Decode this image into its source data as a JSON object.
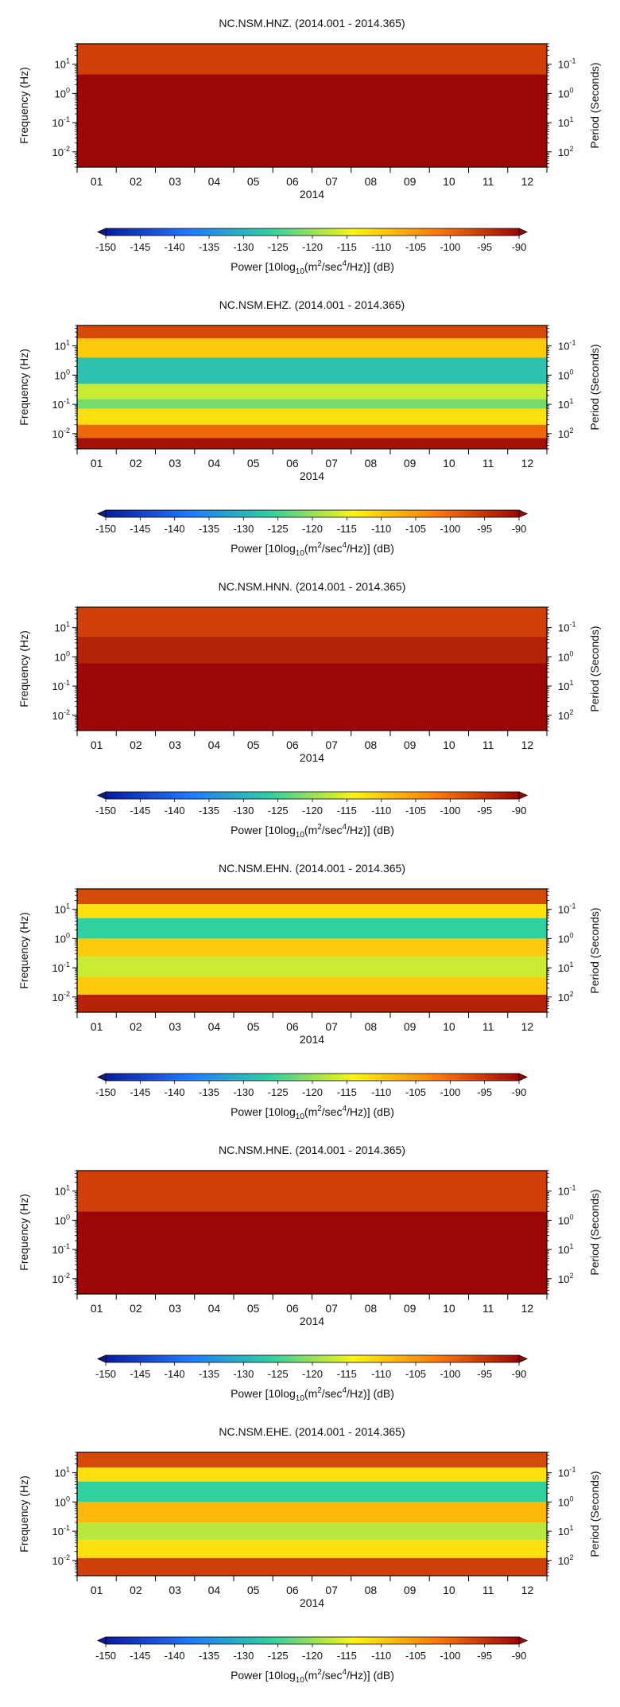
{
  "chart_data": [
    {
      "type": "heatmap",
      "title": "NC.NSM.HNZ. (2014.001 - 2014.365)",
      "xlabel": "2014",
      "ylabel": "Frequency (Hz)",
      "y2label": "Period (Seconds)",
      "x_ticks": [
        "01",
        "02",
        "03",
        "04",
        "05",
        "06",
        "07",
        "08",
        "09",
        "10",
        "11",
        "12"
      ],
      "y_scale": "log",
      "y_ticks": [
        {
          "value": 10,
          "label": "10",
          "exp": "1"
        },
        {
          "value": 1,
          "label": "10",
          "exp": "0"
        },
        {
          "value": 0.1,
          "label": "10",
          "exp": "-1"
        },
        {
          "value": 0.01,
          "label": "10",
          "exp": "-2"
        }
      ],
      "y2_ticks": [
        {
          "value": 0.1,
          "label": "10",
          "exp": "-1"
        },
        {
          "value": 1,
          "label": "10",
          "exp": "0"
        },
        {
          "value": 10,
          "label": "10",
          "exp": "1"
        },
        {
          "value": 100,
          "label": "10",
          "exp": "2"
        }
      ],
      "ylim": [
        0.003,
        50
      ],
      "bands": [
        {
          "f_hi": 50,
          "f_lo": 4.5,
          "power": -96
        },
        {
          "f_hi": 4.5,
          "f_lo": 0.003,
          "power": -90
        }
      ],
      "colorbar": {
        "label_prefix": "Power [10log",
        "label_sub": "10",
        "label_mid1": "(m",
        "label_sup1": "2",
        "label_mid2": "/sec",
        "label_sup2": "4",
        "label_suffix": "/Hz)] (dB)",
        "ticks": [
          "-150",
          "-145",
          "-140",
          "-135",
          "-130",
          "-125",
          "-120",
          "-115",
          "-110",
          "-105",
          "-100",
          "-95",
          "-90"
        ],
        "range": [
          -150,
          -90
        ]
      }
    },
    {
      "type": "heatmap",
      "title": "NC.NSM.EHZ. (2014.001 - 2014.365)",
      "xlabel": "2014",
      "ylabel": "Frequency (Hz)",
      "y2label": "Period (Seconds)",
      "x_ticks": [
        "01",
        "02",
        "03",
        "04",
        "05",
        "06",
        "07",
        "08",
        "09",
        "10",
        "11",
        "12"
      ],
      "y_scale": "log",
      "y_ticks": [
        {
          "value": 10,
          "label": "10",
          "exp": "1"
        },
        {
          "value": 1,
          "label": "10",
          "exp": "0"
        },
        {
          "value": 0.1,
          "label": "10",
          "exp": "-1"
        },
        {
          "value": 0.01,
          "label": "10",
          "exp": "-2"
        }
      ],
      "y2_ticks": [
        {
          "value": 0.1,
          "label": "10",
          "exp": "-1"
        },
        {
          "value": 1,
          "label": "10",
          "exp": "0"
        },
        {
          "value": 10,
          "label": "10",
          "exp": "1"
        },
        {
          "value": 100,
          "label": "10",
          "exp": "2"
        }
      ],
      "ylim": [
        0.003,
        50
      ],
      "bands": [
        {
          "f_hi": 50,
          "f_lo": 18,
          "power": -97
        },
        {
          "f_hi": 18,
          "f_lo": 4,
          "power": -110
        },
        {
          "f_hi": 4,
          "f_lo": 0.5,
          "power": -128
        },
        {
          "f_hi": 0.5,
          "f_lo": 0.15,
          "power": -117
        },
        {
          "f_hi": 0.15,
          "f_lo": 0.07,
          "power": -122
        },
        {
          "f_hi": 0.07,
          "f_lo": 0.02,
          "power": -112
        },
        {
          "f_hi": 0.02,
          "f_lo": 0.007,
          "power": -100
        },
        {
          "f_hi": 0.007,
          "f_lo": 0.003,
          "power": -91
        }
      ],
      "colorbar": {
        "label_prefix": "Power [10log",
        "label_sub": "10",
        "label_mid1": "(m",
        "label_sup1": "2",
        "label_mid2": "/sec",
        "label_sup2": "4",
        "label_suffix": "/Hz)] (dB)",
        "ticks": [
          "-150",
          "-145",
          "-140",
          "-135",
          "-130",
          "-125",
          "-120",
          "-115",
          "-110",
          "-105",
          "-100",
          "-95",
          "-90"
        ],
        "range": [
          -150,
          -90
        ]
      }
    },
    {
      "type": "heatmap",
      "title": "NC.NSM.HNN. (2014.001 - 2014.365)",
      "xlabel": "2014",
      "ylabel": "Frequency (Hz)",
      "y2label": "Period (Seconds)",
      "x_ticks": [
        "01",
        "02",
        "03",
        "04",
        "05",
        "06",
        "07",
        "08",
        "09",
        "10",
        "11",
        "12"
      ],
      "y_scale": "log",
      "y_ticks": [
        {
          "value": 10,
          "label": "10",
          "exp": "1"
        },
        {
          "value": 1,
          "label": "10",
          "exp": "0"
        },
        {
          "value": 0.1,
          "label": "10",
          "exp": "-1"
        },
        {
          "value": 0.01,
          "label": "10",
          "exp": "-2"
        }
      ],
      "y2_ticks": [
        {
          "value": 0.1,
          "label": "10",
          "exp": "-1"
        },
        {
          "value": 1,
          "label": "10",
          "exp": "0"
        },
        {
          "value": 10,
          "label": "10",
          "exp": "1"
        },
        {
          "value": 100,
          "label": "10",
          "exp": "2"
        }
      ],
      "ylim": [
        0.003,
        50
      ],
      "bands": [
        {
          "f_hi": 50,
          "f_lo": 5,
          "power": -96
        },
        {
          "f_hi": 5,
          "f_lo": 0.6,
          "power": -93
        },
        {
          "f_hi": 0.6,
          "f_lo": 0.003,
          "power": -90
        }
      ],
      "colorbar": {
        "label_prefix": "Power [10log",
        "label_sub": "10",
        "label_mid1": "(m",
        "label_sup1": "2",
        "label_mid2": "/sec",
        "label_sup2": "4",
        "label_suffix": "/Hz)] (dB)",
        "ticks": [
          "-150",
          "-145",
          "-140",
          "-135",
          "-130",
          "-125",
          "-120",
          "-115",
          "-110",
          "-105",
          "-100",
          "-95",
          "-90"
        ],
        "range": [
          -150,
          -90
        ]
      }
    },
    {
      "type": "heatmap",
      "title": "NC.NSM.EHN. (2014.001 - 2014.365)",
      "xlabel": "2014",
      "ylabel": "Frequency (Hz)",
      "y2label": "Period (Seconds)",
      "x_ticks": [
        "01",
        "02",
        "03",
        "04",
        "05",
        "06",
        "07",
        "08",
        "09",
        "10",
        "11",
        "12"
      ],
      "y_scale": "log",
      "y_ticks": [
        {
          "value": 10,
          "label": "10",
          "exp": "1"
        },
        {
          "value": 1,
          "label": "10",
          "exp": "0"
        },
        {
          "value": 0.1,
          "label": "10",
          "exp": "-1"
        },
        {
          "value": 0.01,
          "label": "10",
          "exp": "-2"
        }
      ],
      "y2_ticks": [
        {
          "value": 0.1,
          "label": "10",
          "exp": "-1"
        },
        {
          "value": 1,
          "label": "10",
          "exp": "0"
        },
        {
          "value": 10,
          "label": "10",
          "exp": "1"
        },
        {
          "value": 100,
          "label": "10",
          "exp": "2"
        }
      ],
      "ylim": [
        0.003,
        50
      ],
      "bands": [
        {
          "f_hi": 50,
          "f_lo": 15,
          "power": -97
        },
        {
          "f_hi": 15,
          "f_lo": 5,
          "power": -112
        },
        {
          "f_hi": 5,
          "f_lo": 1,
          "power": -126
        },
        {
          "f_hi": 1,
          "f_lo": 0.25,
          "power": -110
        },
        {
          "f_hi": 0.25,
          "f_lo": 0.05,
          "power": -117
        },
        {
          "f_hi": 0.05,
          "f_lo": 0.012,
          "power": -110
        },
        {
          "f_hi": 0.012,
          "f_lo": 0.003,
          "power": -93
        }
      ],
      "colorbar": {
        "label_prefix": "Power [10log",
        "label_sub": "10",
        "label_mid1": "(m",
        "label_sup1": "2",
        "label_mid2": "/sec",
        "label_sup2": "4",
        "label_suffix": "/Hz)] (dB)",
        "ticks": [
          "-150",
          "-145",
          "-140",
          "-135",
          "-130",
          "-125",
          "-120",
          "-115",
          "-110",
          "-105",
          "-100",
          "-95",
          "-90"
        ],
        "range": [
          -150,
          -90
        ]
      }
    },
    {
      "type": "heatmap",
      "title": "NC.NSM.HNE. (2014.001 - 2014.365)",
      "xlabel": "2014",
      "ylabel": "Frequency (Hz)",
      "y2label": "Period (Seconds)",
      "x_ticks": [
        "01",
        "02",
        "03",
        "04",
        "05",
        "06",
        "07",
        "08",
        "09",
        "10",
        "11",
        "12"
      ],
      "y_scale": "log",
      "y_ticks": [
        {
          "value": 10,
          "label": "10",
          "exp": "1"
        },
        {
          "value": 1,
          "label": "10",
          "exp": "0"
        },
        {
          "value": 0.1,
          "label": "10",
          "exp": "-1"
        },
        {
          "value": 0.01,
          "label": "10",
          "exp": "-2"
        }
      ],
      "y2_ticks": [
        {
          "value": 0.1,
          "label": "10",
          "exp": "-1"
        },
        {
          "value": 1,
          "label": "10",
          "exp": "0"
        },
        {
          "value": 10,
          "label": "10",
          "exp": "1"
        },
        {
          "value": 100,
          "label": "10",
          "exp": "2"
        }
      ],
      "ylim": [
        0.003,
        50
      ],
      "bands": [
        {
          "f_hi": 50,
          "f_lo": 2,
          "power": -96
        },
        {
          "f_hi": 2,
          "f_lo": 0.003,
          "power": -90
        }
      ],
      "colorbar": {
        "label_prefix": "Power [10log",
        "label_sub": "10",
        "label_mid1": "(m",
        "label_sup1": "2",
        "label_mid2": "/sec",
        "label_sup2": "4",
        "label_suffix": "/Hz)] (dB)",
        "ticks": [
          "-150",
          "-145",
          "-140",
          "-135",
          "-130",
          "-125",
          "-120",
          "-115",
          "-110",
          "-105",
          "-100",
          "-95",
          "-90"
        ],
        "range": [
          -150,
          -90
        ]
      }
    },
    {
      "type": "heatmap",
      "title": "NC.NSM.EHE. (2014.001 - 2014.365)",
      "xlabel": "2014",
      "ylabel": "Frequency (Hz)",
      "y2label": "Period (Seconds)",
      "x_ticks": [
        "01",
        "02",
        "03",
        "04",
        "05",
        "06",
        "07",
        "08",
        "09",
        "10",
        "11",
        "12"
      ],
      "y_scale": "log",
      "y_ticks": [
        {
          "value": 10,
          "label": "10",
          "exp": "1"
        },
        {
          "value": 1,
          "label": "10",
          "exp": "0"
        },
        {
          "value": 0.1,
          "label": "10",
          "exp": "-1"
        },
        {
          "value": 0.01,
          "label": "10",
          "exp": "-2"
        }
      ],
      "y2_ticks": [
        {
          "value": 0.1,
          "label": "10",
          "exp": "-1"
        },
        {
          "value": 1,
          "label": "10",
          "exp": "0"
        },
        {
          "value": 10,
          "label": "10",
          "exp": "1"
        },
        {
          "value": 100,
          "label": "10",
          "exp": "2"
        }
      ],
      "ylim": [
        0.003,
        50
      ],
      "bands": [
        {
          "f_hi": 50,
          "f_lo": 15,
          "power": -97
        },
        {
          "f_hi": 15,
          "f_lo": 5,
          "power": -112
        },
        {
          "f_hi": 5,
          "f_lo": 1,
          "power": -126
        },
        {
          "f_hi": 1,
          "f_lo": 0.2,
          "power": -108
        },
        {
          "f_hi": 0.2,
          "f_lo": 0.05,
          "power": -118
        },
        {
          "f_hi": 0.05,
          "f_lo": 0.012,
          "power": -112
        },
        {
          "f_hi": 0.012,
          "f_lo": 0.003,
          "power": -96
        }
      ],
      "colorbar": {
        "label_prefix": "Power [10log",
        "label_sub": "10",
        "label_mid1": "(m",
        "label_sup1": "2",
        "label_mid2": "/sec",
        "label_sup2": "4",
        "label_suffix": "/Hz)] (dB)",
        "ticks": [
          "-150",
          "-145",
          "-140",
          "-135",
          "-130",
          "-125",
          "-120",
          "-115",
          "-110",
          "-105",
          "-100",
          "-95",
          "-90"
        ],
        "range": [
          -150,
          -90
        ]
      }
    }
  ],
  "colors": {
    "scale": [
      "#0a1a9e",
      "#1f78ff",
      "#30d0a0",
      "#fcf40e",
      "#ff7a08",
      "#9c0606"
    ]
  }
}
